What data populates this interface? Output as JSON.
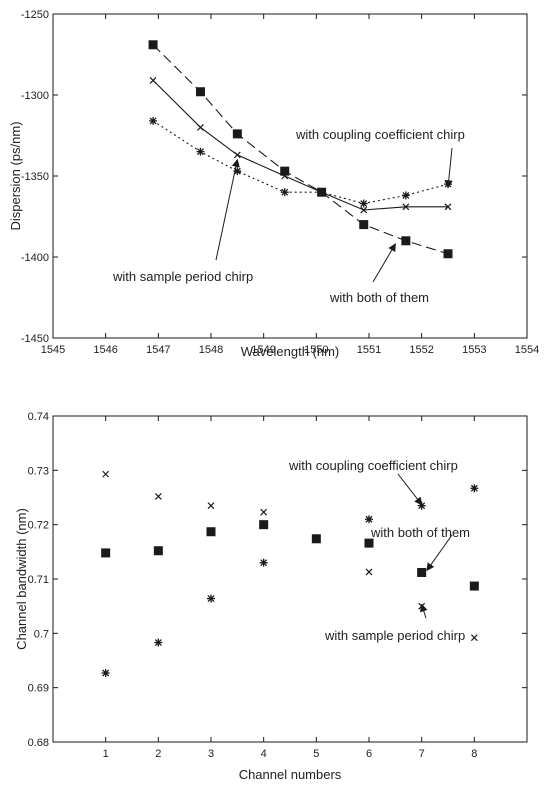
{
  "chart_data": [
    {
      "type": "line",
      "title": "",
      "xlabel": "Wavelength (nm)",
      "ylabel": "Dispersion (ps/nm)",
      "xlim": [
        1545,
        1554
      ],
      "ylim": [
        -1450,
        -1250
      ],
      "xticks": [
        "1545",
        "1546",
        "1547",
        "1548",
        "1549",
        "1550",
        "1551",
        "1552",
        "1553",
        "1554"
      ],
      "yticks": [
        "-1250",
        "-1300",
        "-1350",
        "-1400",
        "-1450"
      ],
      "grid": false,
      "series": [
        {
          "key": "both",
          "marker": "square",
          "line": "dashed",
          "x": [
            1546.9,
            1547.8,
            1548.5,
            1549.4,
            1550.1,
            1550.9,
            1551.7,
            1552.5
          ],
          "y": [
            -1269,
            -1298,
            -1324,
            -1347,
            -1360,
            -1380,
            -1390,
            -1398
          ]
        },
        {
          "key": "coupling",
          "marker": "star",
          "line": "dotted",
          "x": [
            1546.9,
            1547.8,
            1548.5,
            1549.4,
            1550.1,
            1550.9,
            1551.7,
            1552.5
          ],
          "y": [
            -1316,
            -1335,
            -1347,
            -1360,
            -1360,
            -1367,
            -1362,
            -1355
          ]
        },
        {
          "key": "sample",
          "marker": "cross",
          "line": "solid",
          "x": [
            1546.9,
            1547.8,
            1548.5,
            1549.4,
            1550.1,
            1550.9,
            1551.7,
            1552.5
          ],
          "y": [
            -1291,
            -1320,
            -1337,
            -1350,
            -1360,
            -1371,
            -1369,
            -1369
          ]
        }
      ],
      "annotations": [
        {
          "text": "with coupling coefficient chirp",
          "x": 1552.5,
          "y": -1357
        },
        {
          "text": "with sample period chirp",
          "x": 1548.5,
          "y": -1340
        },
        {
          "text": "with both of them",
          "x": 1551.5,
          "y": -1392
        }
      ]
    },
    {
      "type": "scatter",
      "title": "",
      "xlabel": "Channel numbers",
      "ylabel": "Channel bandwidth (nm)",
      "xlim": [
        0,
        9
      ],
      "ylim": [
        0.68,
        0.74
      ],
      "xticks": [
        "1",
        "2",
        "3",
        "4",
        "5",
        "6",
        "7",
        "8"
      ],
      "yticks": [
        "0.74",
        "0.73",
        "0.72",
        "0.71",
        "0.7",
        "0.69",
        "0.68"
      ],
      "grid": false,
      "series": [
        {
          "key": "both",
          "marker": "square",
          "x": [
            1,
            2,
            3,
            4,
            5,
            6,
            7,
            8
          ],
          "y": [
            0.7148,
            0.7152,
            0.7187,
            0.72,
            0.7174,
            0.7166,
            0.7112,
            0.7087
          ]
        },
        {
          "key": "coupling",
          "marker": "star",
          "x": [
            1,
            2,
            3,
            4,
            5,
            6,
            7,
            8
          ],
          "y": [
            0.6927,
            0.6983,
            0.7064,
            0.713,
            0.7175,
            0.721,
            0.7235,
            0.7267
          ]
        },
        {
          "key": "sample",
          "marker": "cross",
          "x": [
            1,
            2,
            3,
            4,
            5,
            6,
            7,
            8
          ],
          "y": [
            0.7293,
            0.7252,
            0.7235,
            0.7223,
            0.7176,
            0.7113,
            0.705,
            0.6992
          ]
        }
      ],
      "annotations": [
        {
          "text": "with coupling coefficient chirp",
          "x": 7,
          "y": 0.7237
        },
        {
          "text": "with both of them",
          "x": 7.1,
          "y": 0.7116
        },
        {
          "text": "with sample period chirp",
          "x": 7,
          "y": 0.7053
        }
      ]
    }
  ]
}
